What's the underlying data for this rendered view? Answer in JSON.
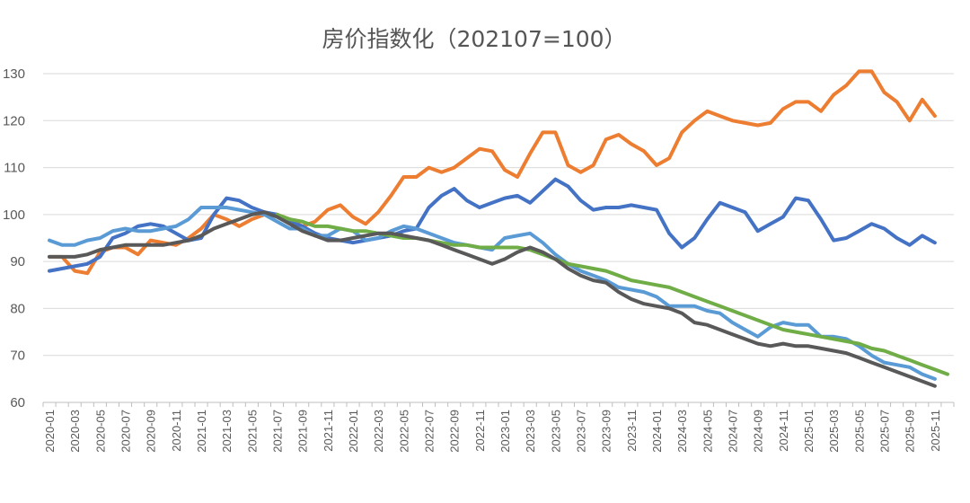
{
  "chart_data": {
    "type": "line",
    "title": "房价指数化（202107=100）",
    "xlabel": "",
    "ylabel": "",
    "ylim": [
      60,
      130
    ],
    "yticks": [
      60,
      70,
      80,
      90,
      100,
      110,
      120,
      130
    ],
    "grid": true,
    "legend": "none",
    "x": [
      "2020-01",
      "2020-02",
      "2020-03",
      "2020-04",
      "2020-05",
      "2020-06",
      "2020-07",
      "2020-08",
      "2020-09",
      "2020-10",
      "2020-11",
      "2020-12",
      "2021-01",
      "2021-02",
      "2021-03",
      "2021-04",
      "2021-05",
      "2021-06",
      "2021-07",
      "2021-08",
      "2021-09",
      "2021-10",
      "2021-11",
      "2021-12",
      "2022-01",
      "2022-02",
      "2022-03",
      "2022-04",
      "2022-05",
      "2022-06",
      "2022-07",
      "2022-08",
      "2022-09",
      "2022-10",
      "2022-11",
      "2022-12",
      "2023-01",
      "2023-02",
      "2023-03",
      "2023-04",
      "2023-05",
      "2023-06",
      "2023-07",
      "2023-08",
      "2023-09",
      "2023-10",
      "2023-11",
      "2023-12",
      "2024-01",
      "2024-02",
      "2024-03",
      "2024-04",
      "2024-05",
      "2024-06",
      "2024-07",
      "2024-08",
      "2024-09",
      "2024-10",
      "2024-11",
      "2024-12",
      "2025-01",
      "2025-02",
      "2025-03",
      "2025-04",
      "2025-05",
      "2025-06",
      "2025-07",
      "2025-08",
      "2025-09",
      "2025-10",
      "2025-11",
      "2025-12"
    ],
    "xtick_labels": [
      "2020-01",
      "2020-03",
      "2020-05",
      "2020-07",
      "2020-09",
      "2020-11",
      "2021-01",
      "2021-03",
      "2021-05",
      "2021-07",
      "2021-09",
      "2021-11",
      "2022-01",
      "2022-03",
      "2022-05",
      "2022-07",
      "2022-09",
      "2022-11",
      "2023-01",
      "2023-03",
      "2023-05",
      "2023-07",
      "2023-09",
      "2023-11",
      "2024-01",
      "2024-03",
      "2024-05",
      "2024-07",
      "2024-09",
      "2024-11",
      "2025-01",
      "2025-03",
      "2025-05",
      "2025-07",
      "2025-09",
      "2025-11"
    ],
    "series": [
      {
        "name": "series-orange",
        "color": "#ED7D31",
        "values": [
          91,
          91,
          88,
          87.5,
          92,
          93,
          93,
          91.5,
          94.5,
          94,
          93.5,
          95,
          97,
          100,
          99,
          97.5,
          99,
          100,
          100,
          99,
          97.5,
          98.5,
          101,
          102,
          99.5,
          98,
          100.5,
          104,
          108,
          108,
          110,
          109,
          110,
          112,
          114,
          113.5,
          109.5,
          108,
          113,
          117.5,
          117.5,
          110.5,
          109,
          110.5,
          116,
          117,
          115,
          113.5,
          110.5,
          112,
          117.5,
          120,
          122,
          121,
          120,
          119.5,
          119,
          119.5,
          122.5,
          124,
          124,
          122,
          125.5,
          127.5,
          130.5,
          130.5,
          126,
          124,
          120,
          124.5,
          121,
          null
        ]
      },
      {
        "name": "series-dark-blue",
        "color": "#4472C4",
        "values": [
          88,
          88.5,
          89,
          89.5,
          91,
          95,
          96,
          97.5,
          98,
          97.5,
          96,
          94.5,
          95,
          100,
          103.5,
          103,
          101.5,
          100.5,
          100,
          98.5,
          97.5,
          96,
          95,
          94.5,
          94,
          94.5,
          95,
          95.5,
          96.5,
          97,
          101.5,
          104,
          105.5,
          103,
          101.5,
          102.5,
          103.5,
          104,
          102.5,
          105,
          107.5,
          106,
          103,
          101,
          101.5,
          101.5,
          102,
          101.5,
          101,
          96,
          93,
          95,
          99,
          102.5,
          101.5,
          100.5,
          96.5,
          98,
          99.5,
          103.5,
          103,
          99,
          94.5,
          95,
          96.5,
          98,
          97,
          95,
          93.5,
          95.5,
          94,
          null
        ]
      },
      {
        "name": "series-light-blue",
        "color": "#5B9BD5",
        "values": [
          94.5,
          93.5,
          93.5,
          94.5,
          95,
          96.5,
          97,
          96.5,
          96.5,
          97,
          97.5,
          99,
          101.5,
          101.5,
          101.5,
          101,
          100.5,
          100,
          98.5,
          97,
          97,
          95.5,
          95.5,
          97,
          96.5,
          94.5,
          95,
          96.5,
          97.5,
          97,
          96,
          95,
          94,
          93.5,
          93,
          92.5,
          95,
          95.5,
          96,
          94,
          91.5,
          89.5,
          88,
          87,
          86,
          84.5,
          84,
          83.5,
          82.5,
          80.5,
          80.5,
          80.5,
          79.5,
          79,
          77,
          75.5,
          74,
          76,
          77,
          76.5,
          76.5,
          74,
          74,
          73.5,
          72,
          70,
          68.5,
          68,
          67.5,
          66,
          65,
          null
        ]
      },
      {
        "name": "series-green",
        "color": "#70AD47",
        "values": [
          null,
          null,
          null,
          null,
          null,
          null,
          null,
          null,
          null,
          null,
          null,
          null,
          null,
          null,
          null,
          null,
          null,
          null,
          100,
          99,
          98.5,
          97.5,
          97.5,
          97,
          96.5,
          96.5,
          96,
          95.5,
          95,
          95,
          94.5,
          94,
          93.5,
          93.5,
          93,
          93,
          93,
          93,
          92.5,
          91.5,
          90.5,
          89.5,
          89,
          88.5,
          88,
          87,
          86,
          85.5,
          85,
          84.5,
          83.5,
          82.5,
          81.5,
          80.5,
          79.5,
          78.5,
          77.5,
          76.5,
          75.5,
          75,
          74.5,
          74,
          73.5,
          73,
          72.5,
          71.5,
          71,
          70,
          69,
          68,
          67,
          66
        ]
      },
      {
        "name": "series-gray",
        "color": "#595959",
        "values": [
          91,
          91,
          91,
          91.5,
          92.5,
          93,
          93.5,
          93.5,
          93.5,
          93.5,
          94,
          94.5,
          95.5,
          97,
          98,
          99,
          100,
          100.5,
          99.5,
          98,
          96.5,
          95.5,
          94.5,
          94.5,
          95,
          95.5,
          96,
          96,
          95.5,
          95,
          94.5,
          93.5,
          92.5,
          91.5,
          90.5,
          89.5,
          90.5,
          92,
          93,
          92,
          90.5,
          88.5,
          87,
          86,
          85.5,
          83.5,
          82,
          81,
          80.5,
          80,
          79,
          77,
          76.5,
          75.5,
          74.5,
          73.5,
          72.5,
          72,
          72.5,
          72,
          72,
          71.5,
          71,
          70.5,
          69.5,
          68.5,
          67.5,
          66.5,
          65.5,
          64.5,
          63.5,
          null
        ]
      }
    ]
  }
}
